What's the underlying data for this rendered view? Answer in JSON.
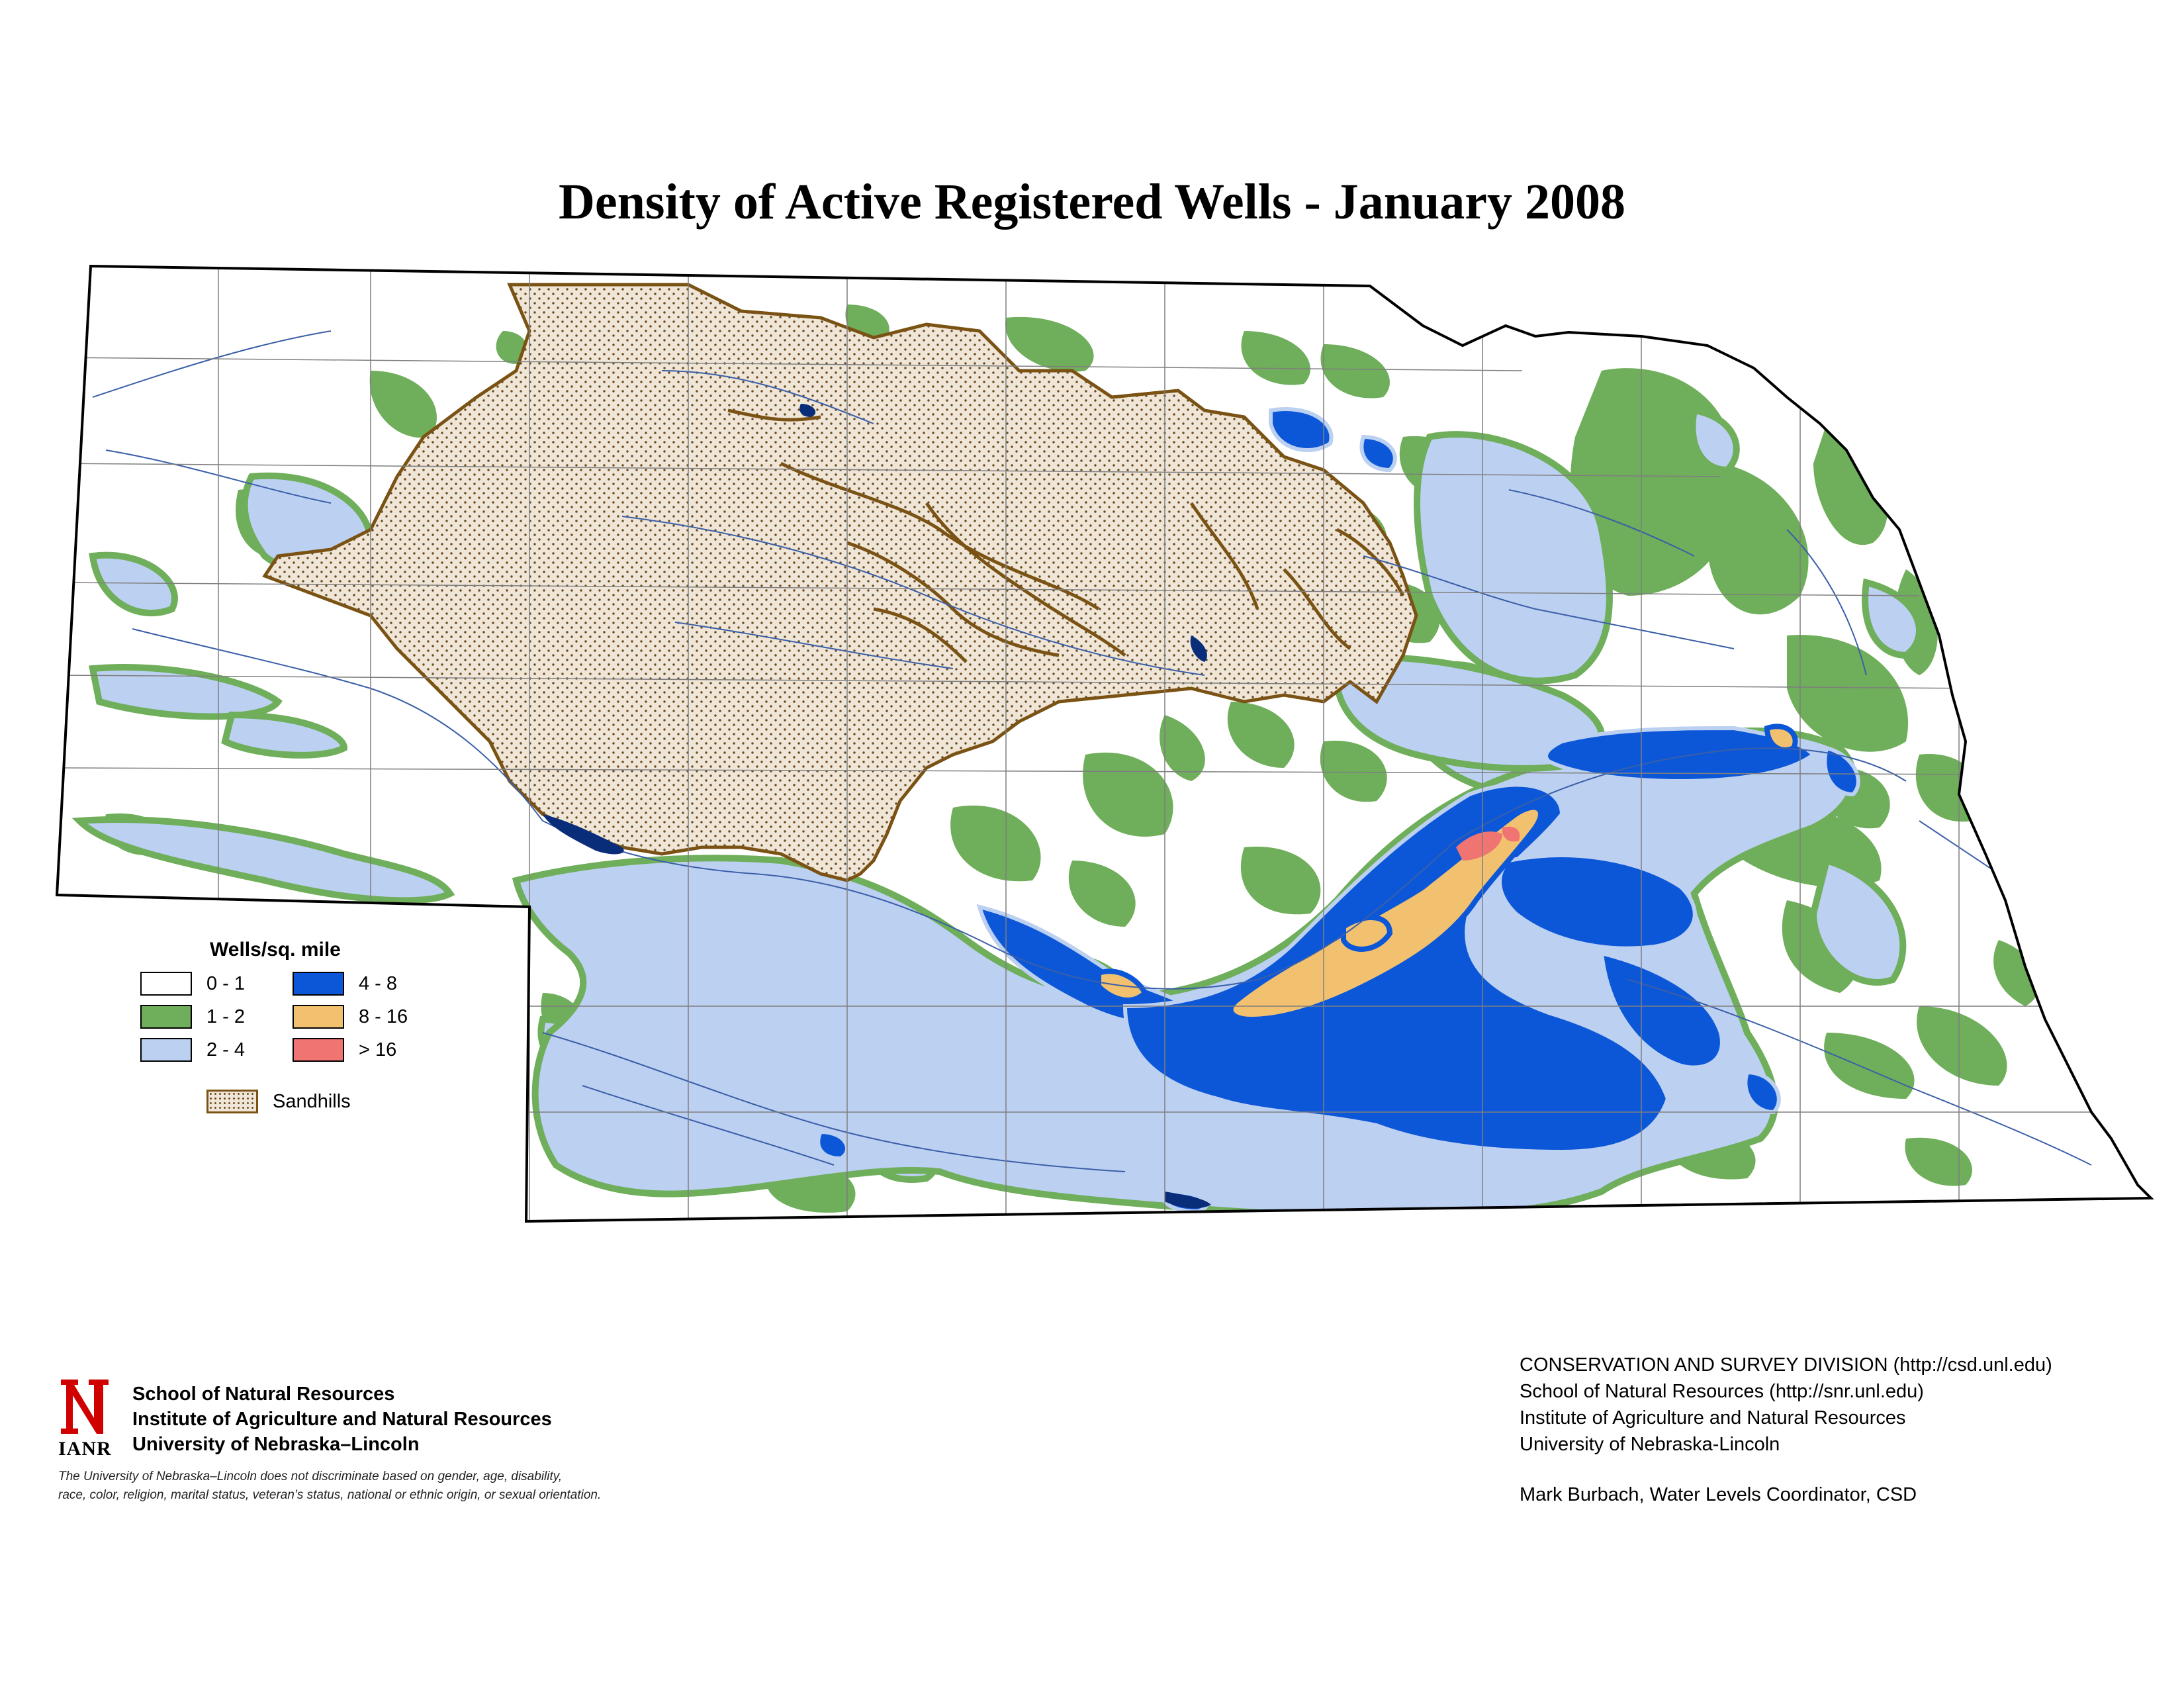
{
  "title": "Density of Active Registered Wells - January 2008",
  "legend": {
    "title": "Wells/sq. mile",
    "classes": [
      {
        "label": "0 - 1",
        "color": "#ffffff"
      },
      {
        "label": "1 - 2",
        "color": "#6fae5a"
      },
      {
        "label": "2 - 4",
        "color": "#bcd0f2"
      },
      {
        "label": "4 - 8",
        "color": "#0c57d8"
      },
      {
        "label": "8 - 16",
        "color": "#f2c170"
      },
      {
        "label": "> 16",
        "color": "#f07472"
      }
    ],
    "sandhills_label": "Sandhills",
    "sandhills_color": "#7a5214"
  },
  "footer_left": {
    "logo_text": "IANR",
    "org_lines": [
      "School of Natural Resources",
      "Institute of Agriculture and Natural Resources",
      "University of Nebraska–Lincoln"
    ],
    "disclaimer_lines": [
      "The University of Nebraska–Lincoln does not discriminate based on gender, age, disability,",
      "race, color, religion, marital status, veteran’s status, national or ethnic origin, or sexual orientation."
    ]
  },
  "footer_right": {
    "lines": [
      "CONSERVATION AND SURVEY DIVISION (http://csd.unl.edu)",
      "School of Natural Resources (http://snr.unl.edu)",
      "Institute of Agriculture and Natural Resources",
      "University of Nebraska-Lincoln"
    ],
    "credit": "Mark Burbach, Water Levels Coordinator, CSD"
  }
}
